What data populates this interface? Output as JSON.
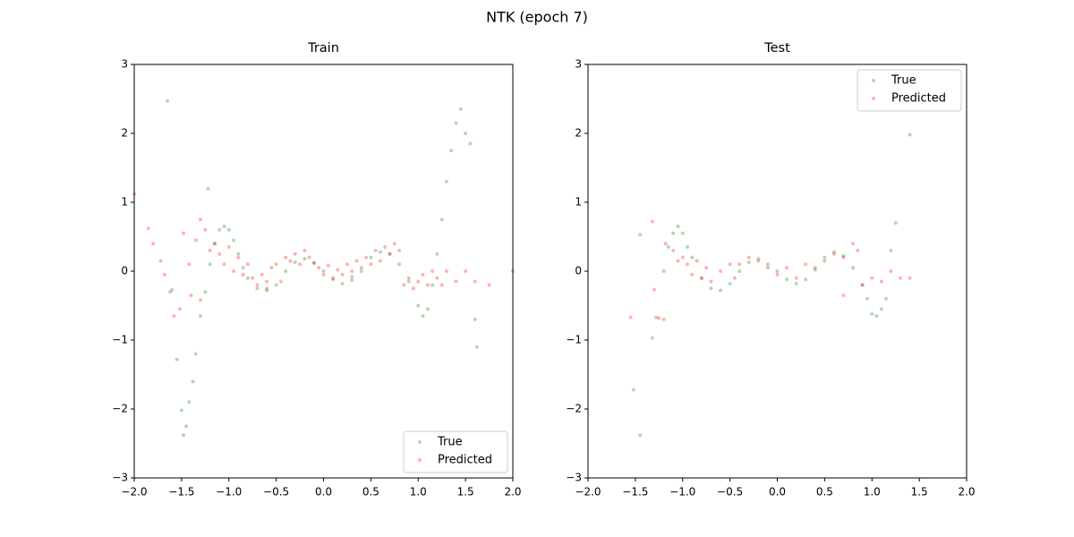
{
  "title": "NTK (epoch 7)",
  "chart_data": [
    {
      "type": "scatter",
      "title": "Train",
      "legend": "lower right",
      "xlim": [
        -2,
        2
      ],
      "ylim": [
        -3,
        3
      ],
      "xticks": [
        {
          "value": -2,
          "label": "−2.0"
        },
        {
          "value": -1.5,
          "label": "−1.5"
        },
        {
          "value": -1,
          "label": "−1.0"
        },
        {
          "value": -0.5,
          "label": "−0.5"
        },
        {
          "value": 0,
          "label": "0.0"
        },
        0.5,
        {
          "value": 1,
          "label": "1.0"
        },
        1.5,
        {
          "value": 2,
          "label": "2.0"
        }
      ],
      "yticks": [
        {
          "value": -3,
          "label": "−3"
        },
        {
          "value": -2,
          "label": "−2"
        },
        {
          "value": -1,
          "label": "−1"
        },
        0,
        1,
        2,
        3
      ],
      "series": [
        {
          "name": "True",
          "color": "green",
          "x": [
            -1.65,
            -1.6,
            -1.55,
            -1.5,
            -1.48,
            -1.45,
            -1.42,
            -1.38,
            -1.35,
            -1.3,
            -1.25,
            -1.2,
            -1.15,
            -1.1,
            -1.05,
            -1.0,
            -0.95,
            -0.9,
            -0.85,
            -0.8,
            -0.7,
            -0.6,
            -0.5,
            -0.4,
            -0.3,
            -0.2,
            -0.1,
            0.0,
            0.1,
            0.2,
            0.3,
            0.4,
            0.5,
            0.6,
            0.7,
            0.8,
            0.9,
            1.0,
            1.05,
            1.1,
            1.15,
            1.2,
            1.25,
            1.3,
            1.35,
            1.4,
            1.45,
            1.5,
            1.55,
            1.6,
            1.62
          ],
          "values": [
            2.47,
            -0.27,
            -1.28,
            -2.02,
            -2.38,
            -2.25,
            -1.9,
            -1.6,
            -1.2,
            -0.65,
            -0.3,
            0.1,
            0.4,
            0.6,
            0.65,
            0.6,
            0.45,
            0.25,
            0.05,
            -0.1,
            -0.25,
            -0.28,
            -0.2,
            0.0,
            0.13,
            0.18,
            0.12,
            0.0,
            -0.12,
            -0.18,
            -0.13,
            0.0,
            0.2,
            0.28,
            0.25,
            0.1,
            -0.15,
            -0.5,
            -0.65,
            -0.55,
            -0.2,
            0.25,
            0.75,
            1.3,
            1.75,
            2.15,
            2.35,
            2.0,
            1.85,
            -0.7,
            -1.1
          ]
        },
        {
          "name": "Predicted",
          "color": "red",
          "x": [
            -2.0,
            -1.85,
            -1.8,
            -1.72,
            -1.68,
            -1.62,
            -1.58,
            -1.52,
            -1.48,
            -1.42,
            -1.4,
            -1.35,
            -1.3,
            -1.3,
            -1.25,
            -1.22,
            -1.2,
            -1.15,
            -1.1,
            -1.05,
            -1.0,
            -0.95,
            -0.9,
            -0.85,
            -0.8,
            -0.75,
            -0.7,
            -0.65,
            -0.6,
            -0.6,
            -0.55,
            -0.5,
            -0.45,
            -0.4,
            -0.35,
            -0.3,
            -0.25,
            -0.2,
            -0.15,
            -0.1,
            -0.05,
            0.0,
            0.05,
            0.1,
            0.15,
            0.2,
            0.25,
            0.3,
            0.3,
            0.35,
            0.4,
            0.45,
            0.5,
            0.55,
            0.6,
            0.65,
            0.7,
            0.75,
            0.8,
            0.85,
            0.9,
            0.95,
            1.0,
            1.05,
            1.1,
            1.15,
            1.2,
            1.25,
            1.3,
            1.4,
            1.5,
            1.6,
            1.75,
            2.0
          ],
          "values": [
            1.12,
            0.62,
            0.4,
            0.15,
            -0.05,
            -0.3,
            -0.65,
            -0.55,
            0.55,
            0.1,
            -0.35,
            0.45,
            0.75,
            -0.42,
            0.6,
            1.2,
            0.3,
            0.4,
            0.25,
            0.1,
            0.35,
            0.0,
            0.2,
            -0.05,
            0.1,
            -0.1,
            -0.2,
            -0.05,
            -0.25,
            -0.15,
            0.05,
            0.1,
            -0.15,
            0.2,
            0.15,
            0.25,
            0.1,
            0.3,
            0.2,
            0.12,
            0.05,
            -0.05,
            0.08,
            -0.1,
            0.02,
            -0.05,
            0.1,
            -0.08,
            0.0,
            0.15,
            0.05,
            0.2,
            0.1,
            0.3,
            0.15,
            0.35,
            0.25,
            0.4,
            0.3,
            -0.2,
            -0.1,
            -0.25,
            -0.15,
            -0.05,
            -0.2,
            0.0,
            -0.1,
            -0.2,
            0.0,
            -0.15,
            0.0,
            -0.15,
            -0.2,
            0.0
          ]
        }
      ]
    },
    {
      "type": "scatter",
      "title": "Test",
      "legend": "upper right",
      "xlim": [
        -2,
        2
      ],
      "ylim": [
        -3,
        3
      ],
      "xticks": [
        {
          "value": -2,
          "label": "−2.0"
        },
        {
          "value": -1.5,
          "label": "−1.5"
        },
        {
          "value": -1,
          "label": "−1.0"
        },
        {
          "value": -0.5,
          "label": "−0.5"
        },
        {
          "value": 0,
          "label": "0.0"
        },
        0.5,
        {
          "value": 1,
          "label": "1.0"
        },
        1.5,
        {
          "value": 2,
          "label": "2.0"
        }
      ],
      "yticks": [
        {
          "value": -3,
          "label": "−3"
        },
        {
          "value": -2,
          "label": "−2"
        },
        {
          "value": -1,
          "label": "−1"
        },
        0,
        1,
        2,
        3
      ],
      "series": [
        {
          "name": "True",
          "color": "green",
          "x": [
            -1.52,
            -1.45,
            -1.32,
            -1.28,
            -1.2,
            -1.15,
            -1.1,
            -1.05,
            -1.0,
            -0.95,
            -0.9,
            -0.8,
            -0.7,
            -0.6,
            -0.5,
            -0.4,
            -0.3,
            -0.2,
            -0.1,
            0.0,
            0.1,
            0.2,
            0.3,
            0.4,
            0.5,
            0.6,
            0.7,
            0.8,
            0.9,
            0.95,
            1.0,
            1.05,
            1.1,
            1.15,
            1.2,
            1.25,
            1.4
          ],
          "values": [
            -1.72,
            -2.38,
            -0.97,
            -0.67,
            0.0,
            0.35,
            0.55,
            0.65,
            0.55,
            0.35,
            0.2,
            -0.1,
            -0.25,
            -0.28,
            -0.18,
            0.0,
            0.13,
            0.18,
            0.1,
            0.0,
            -0.12,
            -0.18,
            -0.12,
            0.02,
            0.2,
            0.28,
            0.22,
            0.05,
            -0.2,
            -0.4,
            -0.62,
            -0.65,
            -0.55,
            -0.4,
            0.3,
            0.7,
            1.98
          ]
        },
        {
          "name": "Predicted",
          "color": "red",
          "x": [
            -1.55,
            -1.45,
            -1.32,
            -1.3,
            -1.25,
            -1.2,
            -1.18,
            -1.1,
            -1.05,
            -1.0,
            -0.95,
            -0.9,
            -0.85,
            -0.8,
            -0.75,
            -0.7,
            -0.6,
            -0.5,
            -0.45,
            -0.4,
            -0.3,
            -0.2,
            -0.1,
            0.0,
            0.1,
            0.2,
            0.3,
            0.4,
            0.5,
            0.6,
            0.7,
            0.7,
            0.8,
            0.85,
            0.9,
            1.0,
            1.1,
            1.2,
            1.3,
            1.4
          ],
          "values": [
            -0.67,
            0.53,
            0.72,
            -0.27,
            -0.68,
            -0.7,
            0.4,
            0.3,
            0.15,
            0.2,
            0.1,
            -0.05,
            0.15,
            -0.1,
            0.05,
            -0.15,
            0.0,
            0.1,
            -0.1,
            0.1,
            0.2,
            0.15,
            0.05,
            -0.05,
            0.05,
            -0.1,
            0.1,
            0.05,
            0.15,
            0.25,
            0.2,
            -0.35,
            0.4,
            0.3,
            -0.2,
            -0.1,
            -0.15,
            0.0,
            -0.1,
            -0.1
          ]
        }
      ]
    }
  ]
}
